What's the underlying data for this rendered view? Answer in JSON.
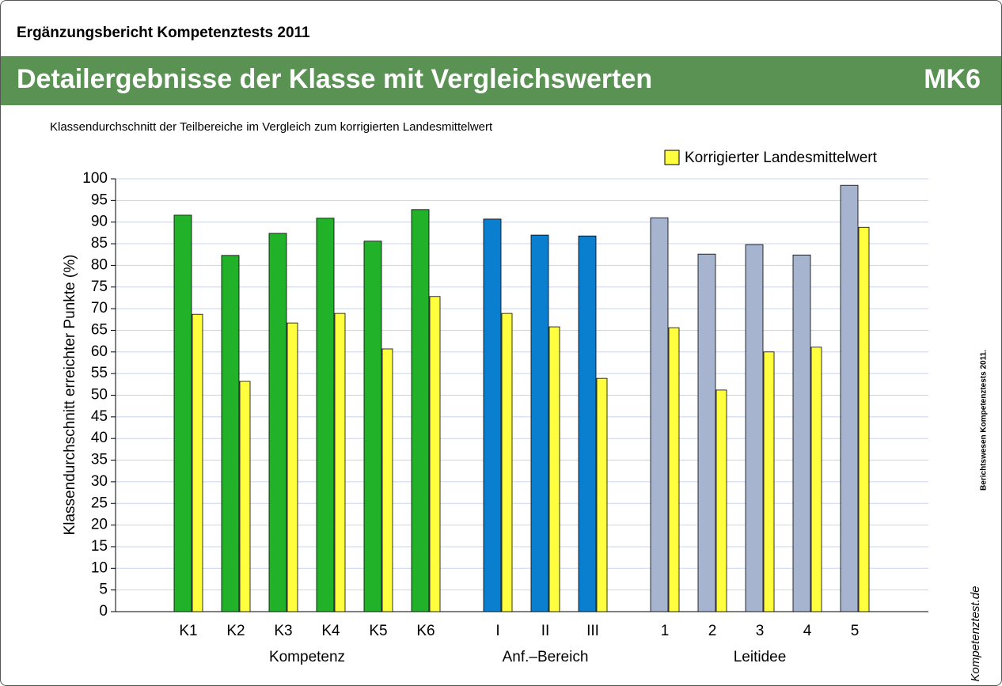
{
  "header": {
    "report": "Ergänzungsbericht Kompetenztests 2011",
    "title": "Detailergebnisse der Klasse mit Vergleichswerten",
    "code": "MK6"
  },
  "side_note": "Berichtswesen Kompetenztests 2011.",
  "logo": "Kompetenztest.de",
  "chart_data": {
    "type": "bar",
    "subtitle": "Klassendurchschnitt der Teilbereiche im Vergleich zum korrigierten Landesmittelwert",
    "ylabel": "Klassendurchschnitt erreichter Punkte (%)",
    "ylim": [
      0,
      100
    ],
    "yticks": [
      0,
      5,
      10,
      15,
      20,
      25,
      30,
      35,
      40,
      45,
      50,
      55,
      60,
      65,
      70,
      75,
      80,
      85,
      90,
      95,
      100
    ],
    "grid": true,
    "reference": {
      "name": "Korrigierter Landesmittelwert",
      "color": "#ffff40"
    },
    "groups": [
      {
        "label": "Kompetenz",
        "color": "#22b22a",
        "categories": [
          "K1",
          "K2",
          "K3",
          "K4",
          "K5",
          "K6"
        ],
        "values": [
          91.6,
          82.3,
          87.4,
          90.9,
          85.6,
          92.9
        ],
        "reference_values": [
          68.7,
          53.2,
          66.7,
          68.9,
          60.7,
          72.8
        ]
      },
      {
        "label": "Anf.–Bereich",
        "color": "#0a7fd0",
        "categories": [
          "I",
          "II",
          "III"
        ],
        "values": [
          90.7,
          87.0,
          86.8
        ],
        "reference_values": [
          68.9,
          65.8,
          53.9
        ]
      },
      {
        "label": "Leitidee",
        "color": "#a6b4cf",
        "categories": [
          "1",
          "2",
          "3",
          "4",
          "5"
        ],
        "values": [
          91.0,
          82.6,
          84.8,
          82.4,
          98.5
        ],
        "reference_values": [
          65.6,
          51.2,
          60.0,
          61.1,
          88.8
        ]
      }
    ]
  }
}
